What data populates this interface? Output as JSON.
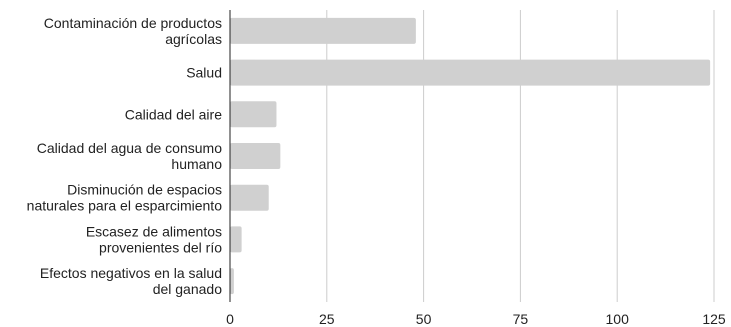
{
  "chart_data": {
    "type": "bar",
    "orientation": "horizontal",
    "title": "",
    "xlabel": "",
    "ylabel": "",
    "categories": [
      [
        "Contaminación de productos",
        "agrícolas"
      ],
      [
        "Salud"
      ],
      [
        "Calidad del aire"
      ],
      [
        "Calidad del agua de consumo",
        "humano"
      ],
      [
        "Disminución de espacios",
        "naturales para el esparcimiento"
      ],
      [
        "Escasez de alimentos",
        "provenientes del río"
      ],
      [
        "Efectos negativos en la salud",
        "del ganado"
      ]
    ],
    "values": [
      48,
      124,
      12,
      13,
      10,
      3,
      1
    ],
    "xlim": [
      0,
      125
    ],
    "xticks": [
      0,
      25,
      50,
      75,
      100,
      125
    ],
    "grid": "vertical",
    "legend": "none",
    "colors": {
      "bar": "#d0d0d0",
      "grid": "#cccccc",
      "axis": "#222222",
      "text": "#222222"
    }
  }
}
